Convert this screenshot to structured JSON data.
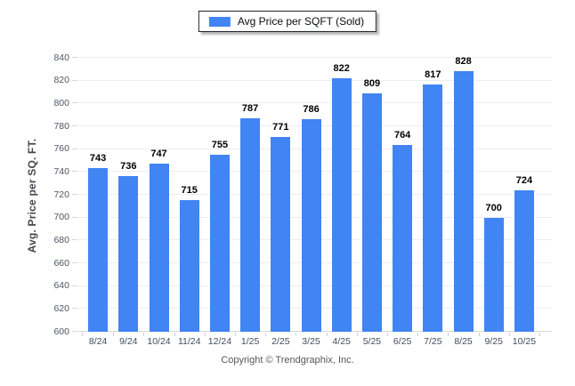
{
  "legend": {
    "label": "Avg Price per SQFT (Sold)",
    "swatch_color": "#4184f3"
  },
  "chart_data": {
    "type": "bar",
    "title": "",
    "series_name": "Avg Price per SQFT (Sold)",
    "categories": [
      "8/24",
      "9/24",
      "10/24",
      "11/24",
      "12/24",
      "1/25",
      "2/25",
      "3/25",
      "4/25",
      "5/25",
      "6/25",
      "7/25",
      "8/25",
      "9/25",
      "10/25"
    ],
    "values": [
      743,
      736,
      747,
      715,
      755,
      787,
      771,
      786,
      822,
      809,
      764,
      817,
      828,
      700,
      724
    ],
    "xlabel": "",
    "ylabel": "Avg. Price per SQ. FT.",
    "ylim": [
      600,
      840
    ],
    "ytick_step": 20,
    "grid": "horizontal",
    "legend_position": "top",
    "bar_color": "#4184f3",
    "value_labels": true
  },
  "footer": {
    "copyright": "Copyright © Trendgraphix, Inc."
  }
}
